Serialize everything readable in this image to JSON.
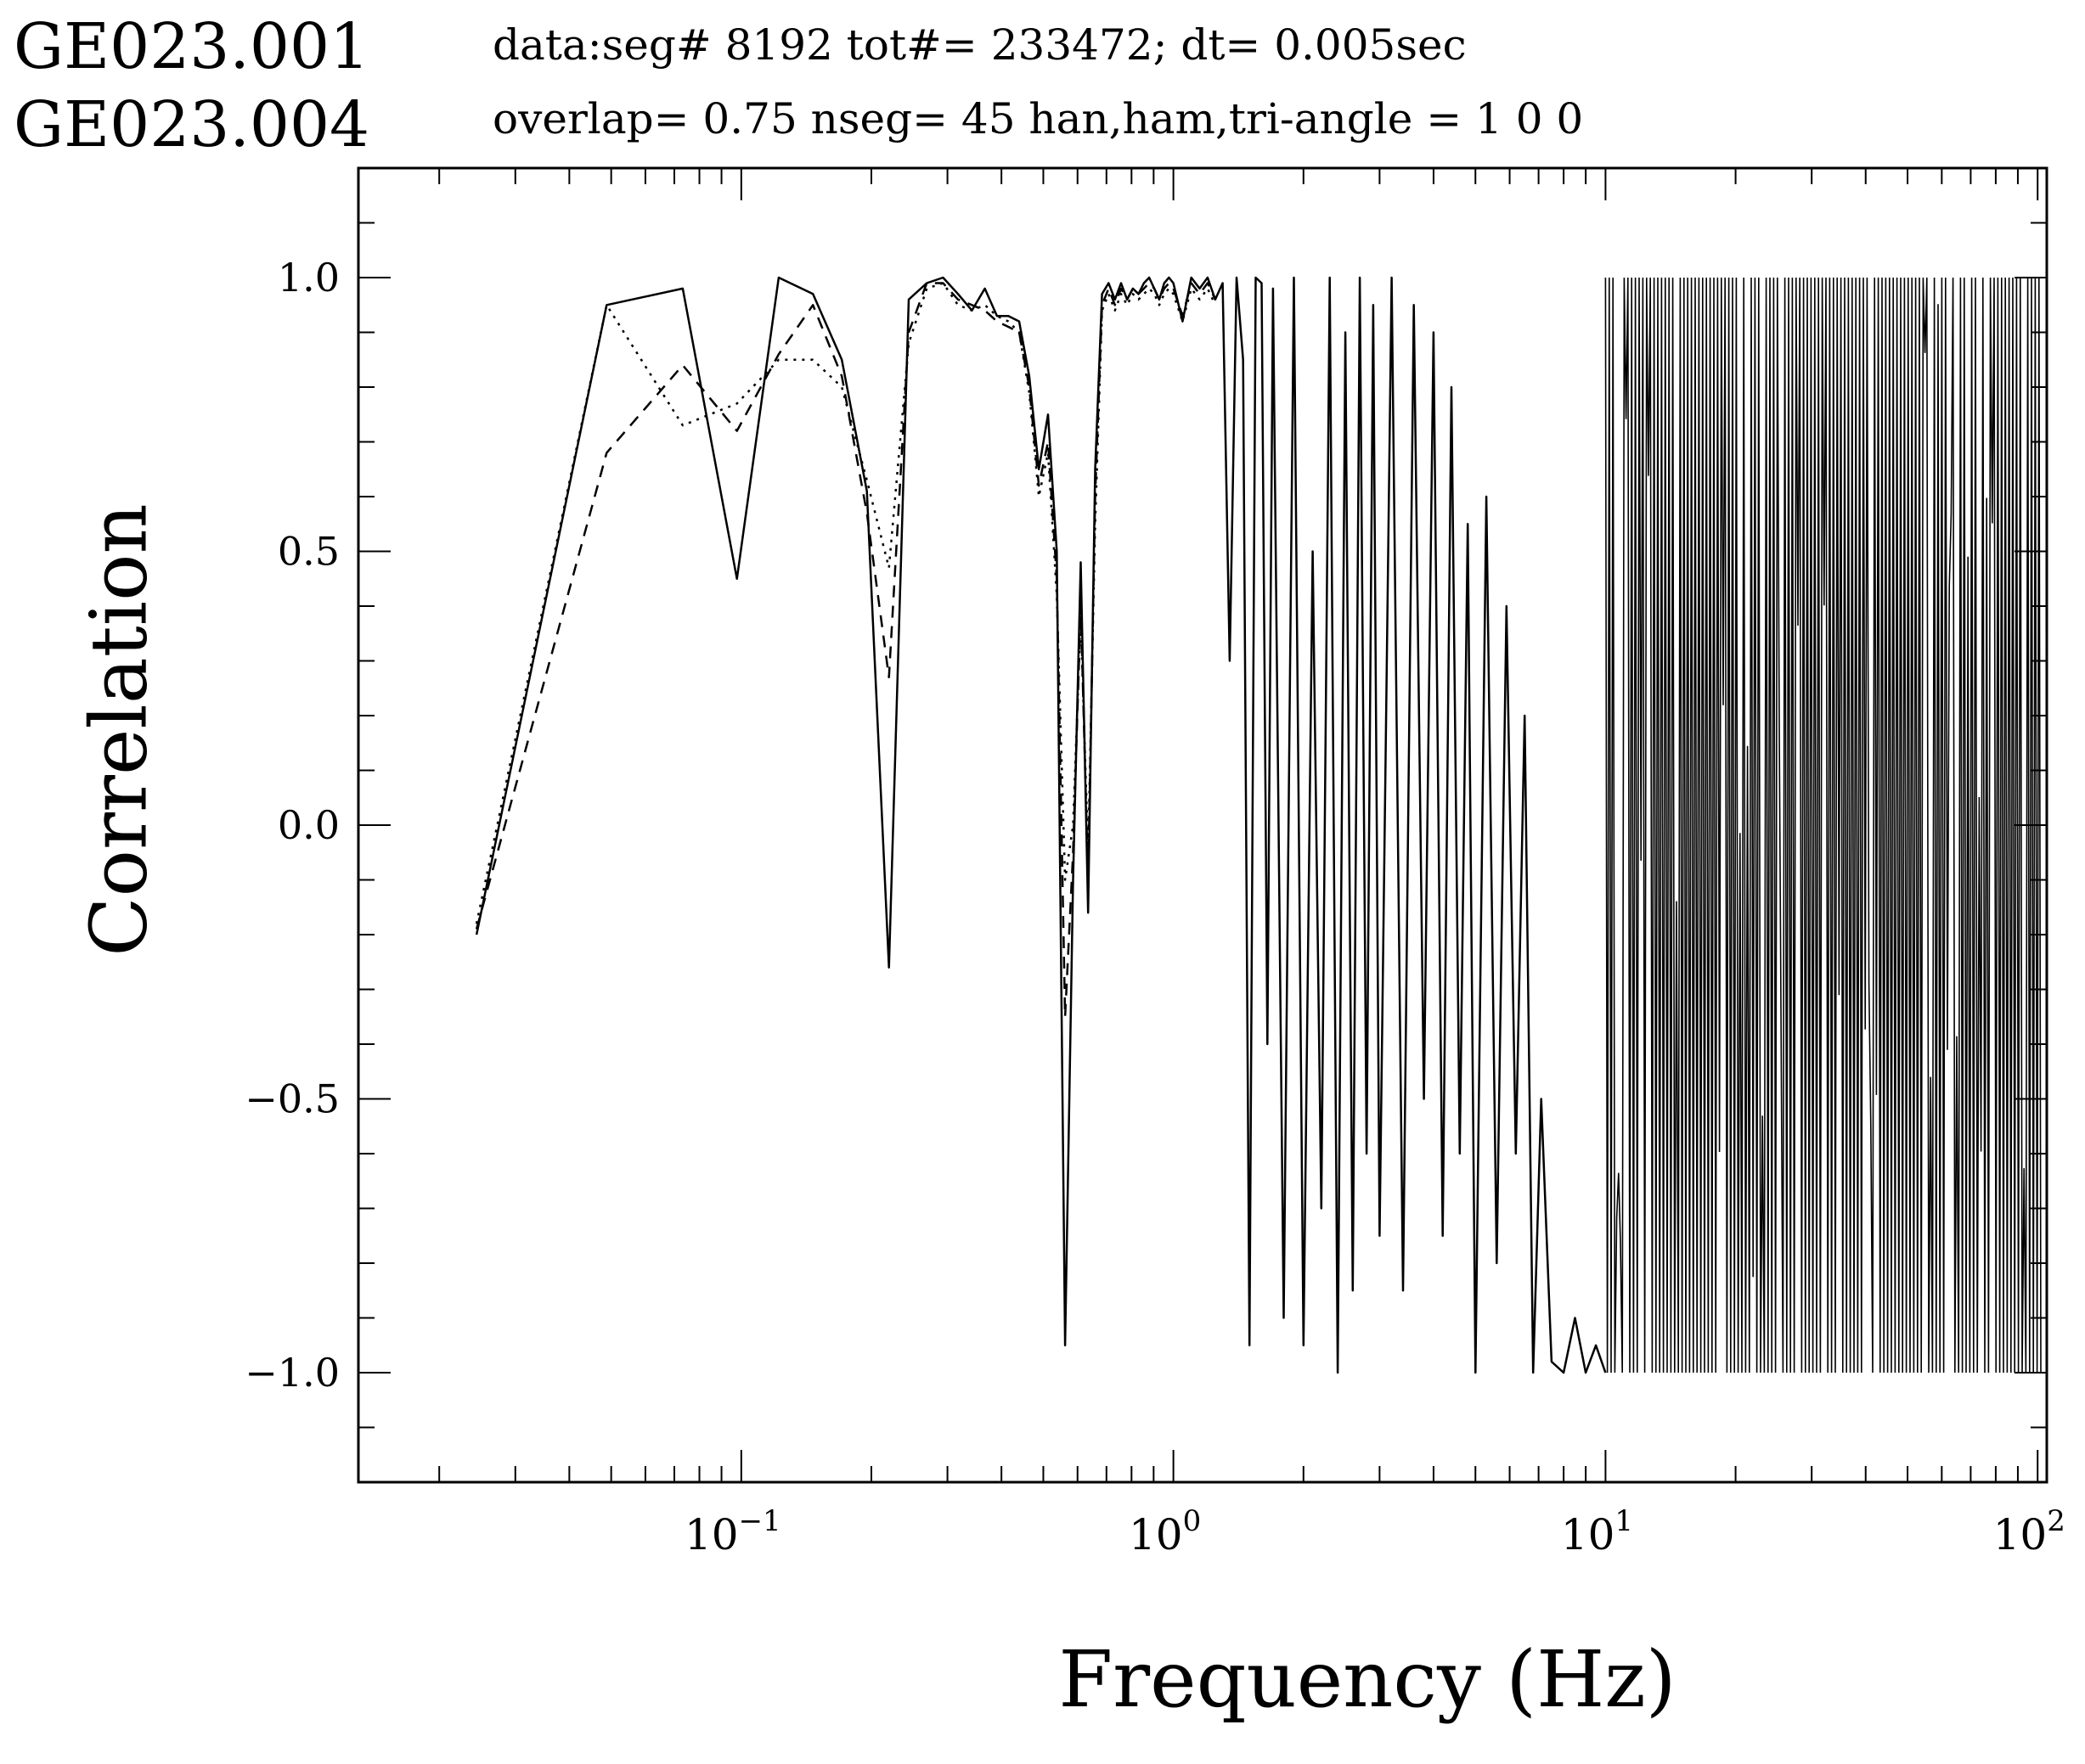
{
  "header": {
    "station_1": "GE023.001",
    "station_2": "GE023.004",
    "info_line_1": "data:seg# 8192 tot#= 233472; dt=  0.005sec",
    "info_line_2": "overlap=  0.75 nseg= 45 han,ham,tri-angle = 1 0 0"
  },
  "chart_data": {
    "type": "line",
    "title": "",
    "xlabel": "Frequency (Hz)",
    "ylabel": "Correlation",
    "xscale": "log",
    "xlim": [
      0.013,
      105
    ],
    "ylim": [
      -1.2,
      1.2
    ],
    "grid": false,
    "legend": "none",
    "x_ticks": [
      {
        "value": 0.1,
        "base": "10",
        "exp": "−1"
      },
      {
        "value": 1,
        "base": "10",
        "exp": "0"
      },
      {
        "value": 10,
        "base": "10",
        "exp": "1"
      },
      {
        "value": 100,
        "base": "10",
        "exp": "2"
      }
    ],
    "y_ticks": [
      {
        "value": 1.0,
        "label": "1.0"
      },
      {
        "value": 0.5,
        "label": "0.5"
      },
      {
        "value": 0.0,
        "label": "0.0"
      },
      {
        "value": -0.5,
        "label": "−0.5"
      },
      {
        "value": -1.0,
        "label": "−1.0"
      }
    ],
    "series": [
      {
        "style": "solid",
        "x": [
          0.0244,
          0.0488,
          0.0732,
          0.0977,
          0.1221,
          0.1465,
          0.1709,
          0.1953,
          0.2197,
          0.2441,
          0.2686,
          0.293,
          0.3174,
          0.3418,
          0.3662,
          0.3906,
          0.415,
          0.4395,
          0.4639,
          0.4883,
          0.5127,
          0.5371,
          0.5615,
          0.5859,
          0.6104,
          0.6348,
          0.6592,
          0.6836,
          0.708,
          0.7324,
          0.7568,
          0.7813,
          0.8057,
          0.8301,
          0.8545,
          0.8789,
          0.9033,
          0.9277,
          0.9521,
          0.9766,
          1.0,
          1.05,
          1.1,
          1.15,
          1.2,
          1.25,
          1.3,
          1.35,
          1.4,
          1.45,
          1.5,
          1.55,
          1.6,
          1.65,
          1.7,
          1.8,
          1.9,
          2.0,
          2.1,
          2.2,
          2.3,
          2.4,
          2.5,
          2.6,
          2.7,
          2.8,
          2.9,
          3.0,
          3.2,
          3.4,
          3.6,
          3.8,
          4.0,
          4.2,
          4.4,
          4.6,
          4.8,
          5.0,
          5.3,
          5.6,
          5.9,
          6.2,
          6.5,
          6.8,
          7.1,
          7.5,
          8.0,
          8.5,
          9.0,
          9.5,
          10.0
        ],
        "y": [
          -0.2,
          0.95,
          0.98,
          0.45,
          1.0,
          0.97,
          0.85,
          0.61,
          -0.26,
          0.96,
          0.99,
          1.0,
          0.97,
          0.94,
          0.98,
          0.93,
          0.93,
          0.92,
          0.82,
          0.65,
          0.75,
          0.5,
          -0.95,
          -0.1,
          0.48,
          -0.16,
          0.65,
          0.97,
          0.99,
          0.96,
          0.99,
          0.96,
          0.98,
          0.97,
          0.99,
          1.0,
          0.98,
          0.96,
          0.99,
          1.0,
          0.99,
          0.92,
          1.0,
          0.98,
          1.0,
          0.96,
          0.99,
          0.3,
          1.0,
          0.85,
          -0.95,
          1.0,
          0.99,
          -0.4,
          0.98,
          -0.9,
          1.0,
          -0.95,
          0.5,
          -0.7,
          1.0,
          -1.0,
          0.9,
          -0.85,
          1.0,
          -0.6,
          0.95,
          -0.75,
          1.0,
          -0.85,
          0.95,
          -0.5,
          0.9,
          -0.75,
          0.8,
          -0.6,
          0.55,
          -1.0,
          0.6,
          -0.8,
          0.4,
          -0.6,
          0.2,
          -1.0,
          -0.5,
          -0.98,
          -1.0,
          -0.9,
          -1.0,
          -0.95,
          -1.0
        ]
      },
      {
        "style": "dashed",
        "x": [
          0.0244,
          0.0488,
          0.0732,
          0.0977,
          0.1221,
          0.1465,
          0.1709,
          0.1953,
          0.2197,
          0.2441,
          0.2686,
          0.293,
          0.3174,
          0.3418,
          0.3662,
          0.3906,
          0.415,
          0.4395,
          0.4639,
          0.4883,
          0.5127,
          0.5371,
          0.5615,
          0.5859,
          0.6104,
          0.6348,
          0.6592,
          0.6836,
          0.708,
          0.7324,
          0.7568,
          0.7813,
          0.8057,
          0.8301,
          0.8545,
          0.8789,
          0.9033,
          0.9277,
          0.9521,
          0.9766,
          1.0,
          1.05,
          1.1,
          1.15,
          1.2,
          1.25
        ],
        "y": [
          -0.19,
          0.68,
          0.84,
          0.72,
          0.86,
          0.95,
          0.82,
          0.57,
          0.27,
          0.9,
          0.99,
          0.99,
          0.96,
          0.95,
          0.94,
          0.92,
          0.91,
          0.9,
          0.8,
          0.62,
          0.7,
          0.45,
          -0.35,
          -0.05,
          0.4,
          -0.1,
          0.6,
          0.95,
          0.98,
          0.95,
          0.98,
          0.96,
          0.98,
          0.97,
          0.98,
          0.99,
          0.98,
          0.96,
          0.98,
          0.99,
          0.98,
          0.93,
          0.99,
          0.97,
          0.99,
          0.96
        ]
      },
      {
        "style": "dotted",
        "x": [
          0.0244,
          0.0488,
          0.0732,
          0.0977,
          0.1221,
          0.1465,
          0.1709,
          0.1953,
          0.2197,
          0.2441,
          0.2686,
          0.293,
          0.3174,
          0.3418,
          0.3662,
          0.3906,
          0.415,
          0.4395,
          0.4639,
          0.4883,
          0.5127,
          0.5371,
          0.5615,
          0.5859,
          0.6104,
          0.6348,
          0.6592,
          0.6836,
          0.708,
          0.7324,
          0.7568,
          0.7813,
          0.8057,
          0.8301,
          0.8545,
          0.8789,
          0.9033,
          0.9277,
          0.9521,
          0.9766,
          1.0,
          1.05,
          1.1,
          1.15,
          1.2,
          1.25
        ],
        "y": [
          -0.18,
          0.95,
          0.73,
          0.77,
          0.85,
          0.85,
          0.8,
          0.63,
          0.47,
          0.88,
          0.98,
          0.99,
          0.95,
          0.94,
          0.95,
          0.93,
          0.92,
          0.9,
          0.79,
          0.6,
          0.68,
          0.42,
          -0.1,
          0.0,
          0.38,
          -0.05,
          0.55,
          0.94,
          0.97,
          0.94,
          0.97,
          0.95,
          0.97,
          0.96,
          0.97,
          0.98,
          0.97,
          0.95,
          0.97,
          0.98,
          0.97,
          0.92,
          0.98,
          0.96,
          0.98,
          0.95
        ]
      }
    ],
    "high_frequency_band": {
      "style": "solid",
      "x_range": [
        10,
        102
      ],
      "y_range": [
        -1.0,
        1.0
      ],
      "description_of_form": "rapid oscillation between -1 and 1"
    }
  }
}
